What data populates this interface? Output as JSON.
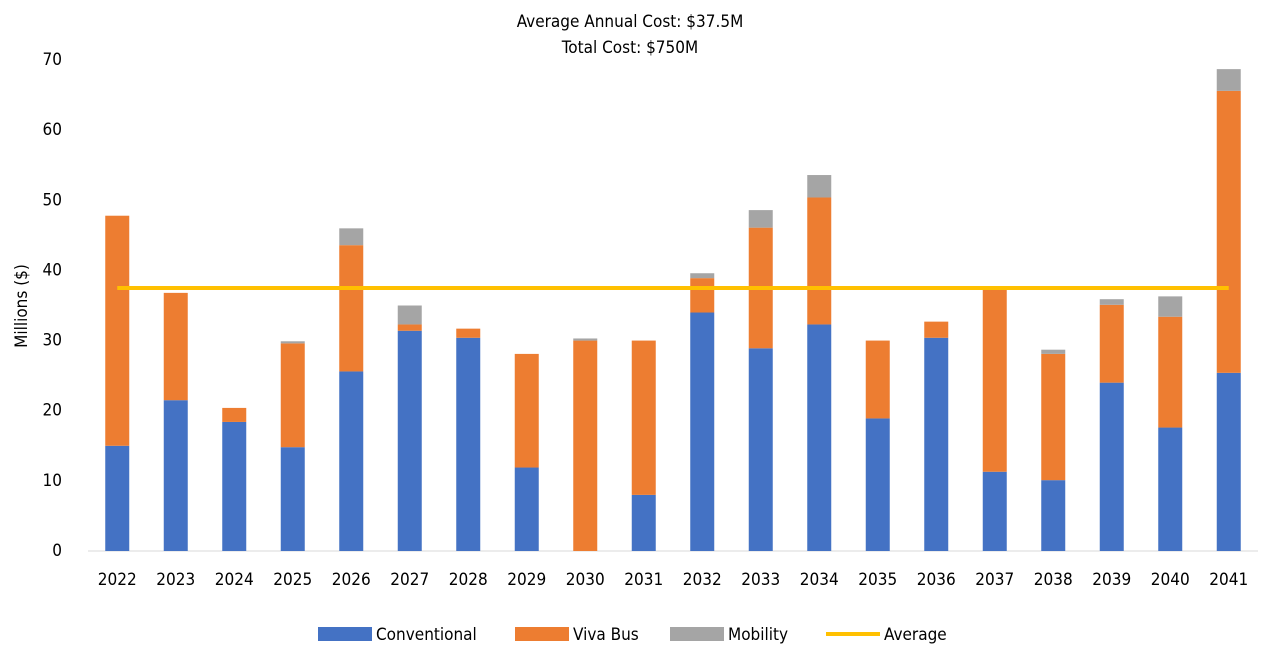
{
  "chart_data": {
    "type": "stacked_bar",
    "title": "Average Annual Cost: $37.5M",
    "subtitle": "Total Cost: $750M",
    "y_label": "Millions ($)",
    "categories": [
      "2022",
      "2023",
      "2024",
      "2025",
      "2026",
      "2027",
      "2028",
      "2029",
      "2030",
      "2031",
      "2032",
      "2033",
      "2034",
      "2035",
      "2036",
      "2037",
      "2038",
      "2039",
      "2040",
      "2041"
    ],
    "series": [
      {
        "name": "Conventional",
        "color": "#4472c4",
        "values": [
          15.0,
          21.5,
          18.4,
          14.8,
          25.6,
          31.4,
          30.4,
          11.9,
          0,
          8.0,
          34.0,
          28.9,
          32.3,
          18.9,
          30.4,
          11.3,
          10.1,
          24.0,
          17.6,
          25.4
        ]
      },
      {
        "name": "Viva Bus",
        "color": "#ed7d31",
        "values": [
          32.8,
          15.3,
          2.0,
          14.8,
          18.0,
          0.9,
          1.3,
          16.2,
          30.0,
          22.0,
          4.9,
          17.2,
          18.1,
          11.1,
          2.3,
          26.3,
          18.0,
          11.1,
          15.8,
          40.2
        ]
      },
      {
        "name": "Mobility",
        "color": "#a5a5a5",
        "values": [
          0,
          0,
          0,
          0.3,
          2.4,
          2.7,
          0,
          0,
          0.3,
          0,
          0.7,
          2.5,
          3.2,
          0,
          0,
          0,
          0.6,
          0.8,
          2.9,
          3.1
        ]
      }
    ],
    "average": {
      "name": "Average",
      "color": "#ffc000",
      "value": 37.5
    },
    "ylim": [
      0,
      70
    ],
    "yticks": [
      0,
      10,
      20,
      30,
      40,
      50,
      60,
      70
    ],
    "legend": "bottom"
  }
}
